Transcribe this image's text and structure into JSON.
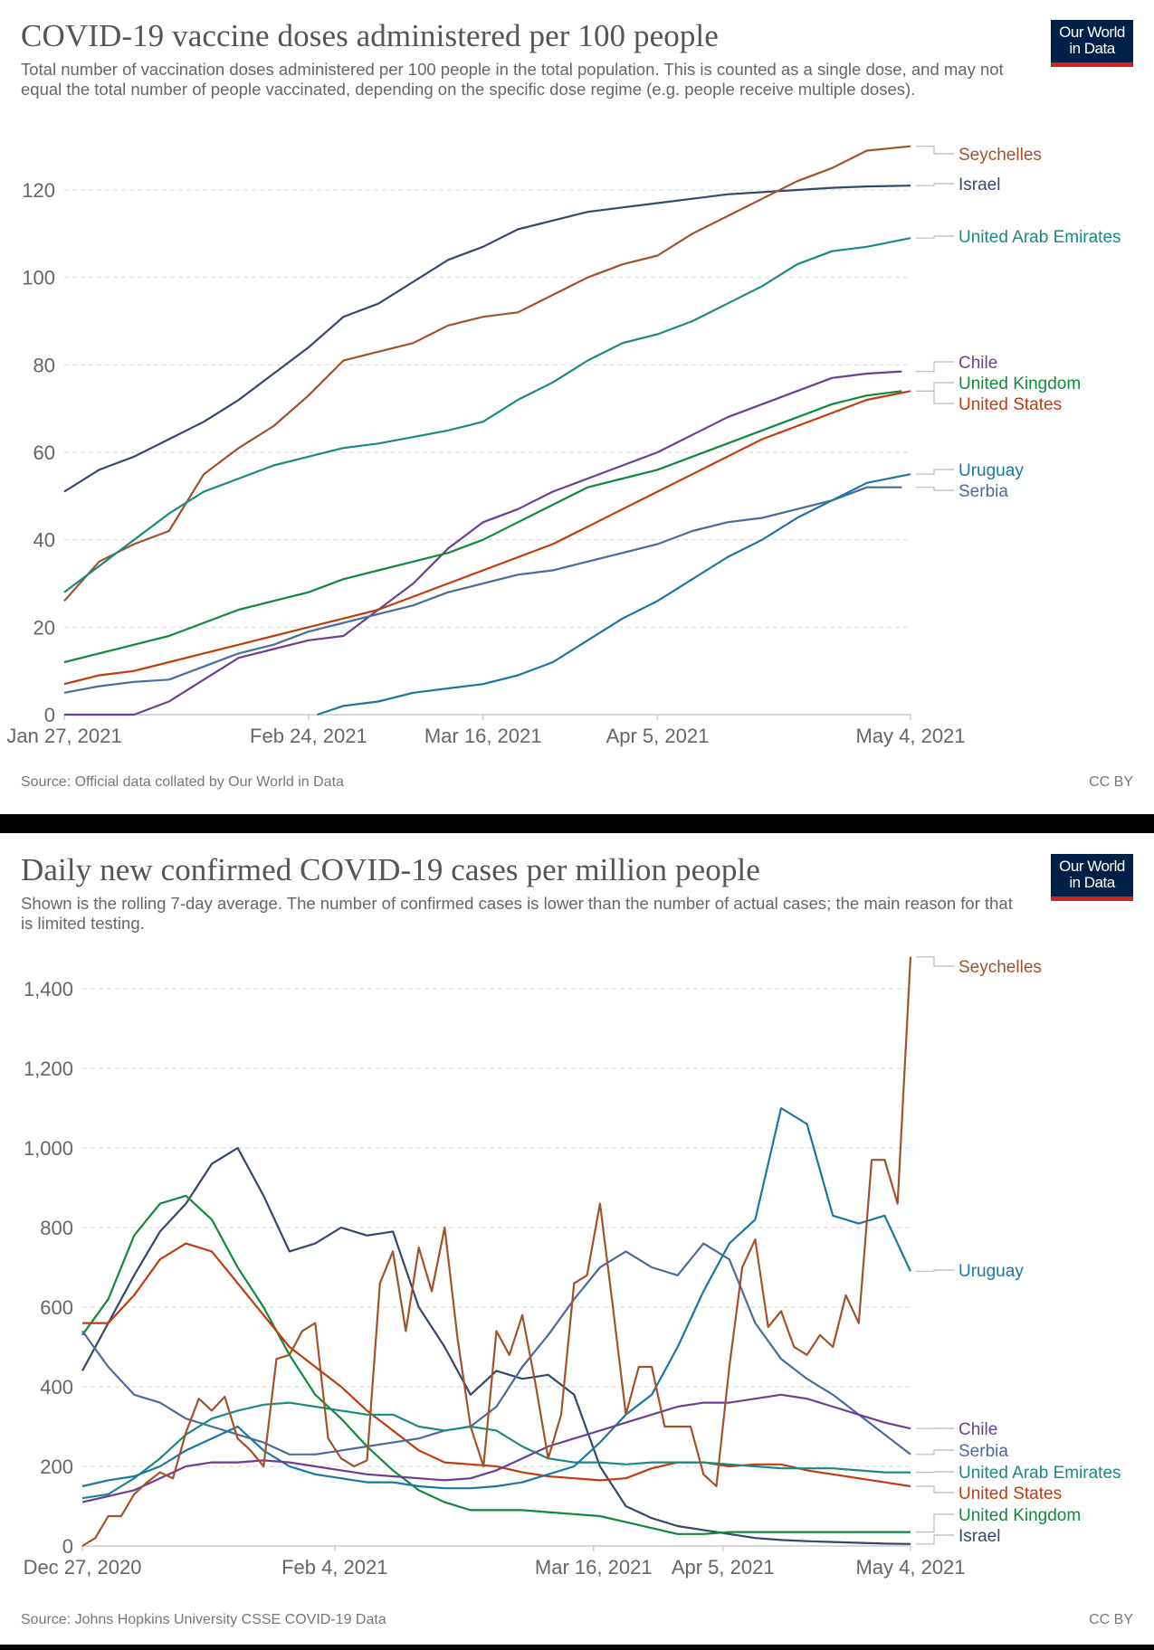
{
  "charts": [
    {
      "title": "COVID-19 vaccine doses administered per 100 people",
      "subtitle": "Total number of vaccination doses administered per 100 people in the total population. This is counted as a single dose, and may not equal the total number of people vaccinated, depending on the specific dose regime (e.g. people receive multiple doses).",
      "logo": [
        "Our World",
        "in Data"
      ],
      "source": "Source: Official data collated by Our World in Data",
      "license": "CC BY"
    },
    {
      "title": "Daily new confirmed COVID-19 cases per million people",
      "subtitle": "Shown is the rolling 7-day average. The number of confirmed cases is lower than the number of actual cases; the main reason for that is limited testing.",
      "logo": [
        "Our World",
        "in Data"
      ],
      "source": "Source: Johns Hopkins University CSSE COVID-19 Data",
      "license": "CC BY"
    }
  ],
  "colors": {
    "Seychelles": "#a2522a",
    "Israel": "#35486b",
    "United Arab Emirates": "#1a8a80",
    "Chile": "#6d3e91",
    "United Kingdom": "#0f8a3c",
    "United States": "#c03c0f",
    "Uruguay": "#1a77a0",
    "Serbia": "#4c6a9c",
    "grid": "#dddddd",
    "axis": "#cccccc",
    "logo_bg": "#002147",
    "logo_accent": "#ce261e"
  },
  "chart_data": [
    {
      "type": "line",
      "title": "COVID-19 vaccine doses administered per 100 people",
      "xlabel": "",
      "ylabel": "",
      "x_unit": "days since Jan 27, 2021",
      "xlim": [
        0,
        97
      ],
      "ylim": [
        0,
        130
      ],
      "yticks": [
        0,
        20,
        40,
        60,
        80,
        100,
        120
      ],
      "ytick_labels": [
        "0",
        "20",
        "40",
        "60",
        "80",
        "100",
        "120"
      ],
      "xticks": [
        0,
        28,
        48,
        68,
        97
      ],
      "xtick_labels": [
        "Jan 27, 2021",
        "Feb 24, 2021",
        "Mar 16, 2021",
        "Apr 5, 2021",
        "May 4, 2021"
      ],
      "grid": true,
      "legend": "right, end-of-line labels",
      "legend_order": [
        "Seychelles",
        "Israel",
        "United Arab Emirates",
        "Chile",
        "United Kingdom",
        "United States",
        "Uruguay",
        "Serbia"
      ],
      "series": [
        {
          "name": "Israel",
          "x": [
            0,
            4,
            8,
            12,
            16,
            20,
            24,
            28,
            32,
            36,
            40,
            44,
            48,
            52,
            56,
            60,
            64,
            68,
            72,
            76,
            80,
            84,
            88,
            92,
            97
          ],
          "values": [
            51,
            56,
            59,
            63,
            67,
            72,
            78,
            84,
            91,
            94,
            99,
            104,
            107,
            111,
            113,
            115,
            116,
            117,
            118,
            119,
            119.5,
            120,
            120.5,
            120.8,
            121
          ]
        },
        {
          "name": "Seychelles",
          "x": [
            0,
            4,
            8,
            12,
            16,
            20,
            24,
            28,
            32,
            36,
            40,
            44,
            48,
            52,
            56,
            60,
            64,
            68,
            72,
            76,
            80,
            84,
            88,
            92,
            97
          ],
          "values": [
            26,
            35,
            39,
            42,
            55,
            61,
            66,
            73,
            81,
            83,
            85,
            89,
            91,
            92,
            96,
            100,
            103,
            105,
            110,
            114,
            118,
            122,
            125,
            129,
            130
          ]
        },
        {
          "name": "United Arab Emirates",
          "x": [
            0,
            4,
            8,
            12,
            16,
            20,
            24,
            28,
            32,
            36,
            40,
            44,
            48,
            52,
            56,
            60,
            64,
            68,
            72,
            76,
            80,
            84,
            88,
            92,
            97
          ],
          "values": [
            28,
            34,
            40,
            46,
            51,
            54,
            57,
            59,
            61,
            62,
            63.5,
            65,
            67,
            72,
            76,
            81,
            85,
            87,
            90,
            94,
            98,
            103,
            106,
            107,
            109
          ]
        },
        {
          "name": "Chile",
          "x": [
            0,
            4,
            8,
            12,
            16,
            20,
            24,
            28,
            32,
            36,
            40,
            44,
            48,
            52,
            56,
            60,
            64,
            68,
            72,
            76,
            80,
            84,
            88,
            92,
            96
          ],
          "values": [
            0,
            0,
            0,
            3,
            8,
            13,
            15,
            17,
            18,
            24,
            30,
            38,
            44,
            47,
            51,
            54,
            57,
            60,
            64,
            68,
            71,
            74,
            77,
            78,
            78.5
          ]
        },
        {
          "name": "United Kingdom",
          "x": [
            0,
            4,
            8,
            12,
            16,
            20,
            24,
            28,
            32,
            36,
            40,
            44,
            48,
            52,
            56,
            60,
            64,
            68,
            72,
            76,
            80,
            84,
            88,
            92,
            96
          ],
          "values": [
            12,
            14,
            16,
            18,
            21,
            24,
            26,
            28,
            31,
            33,
            35,
            37,
            40,
            44,
            48,
            52,
            54,
            56,
            59,
            62,
            65,
            68,
            71,
            73,
            74
          ]
        },
        {
          "name": "United States",
          "x": [
            0,
            4,
            8,
            12,
            16,
            20,
            24,
            28,
            32,
            36,
            40,
            44,
            48,
            52,
            56,
            60,
            64,
            68,
            72,
            76,
            80,
            84,
            88,
            92,
            97
          ],
          "values": [
            7,
            9,
            10,
            12,
            14,
            16,
            18,
            20,
            22,
            24,
            27,
            30,
            33,
            36,
            39,
            43,
            47,
            51,
            55,
            59,
            63,
            66,
            69,
            72,
            74
          ]
        },
        {
          "name": "Serbia",
          "x": [
            0,
            4,
            8,
            12,
            16,
            20,
            24,
            28,
            32,
            36,
            40,
            44,
            48,
            52,
            56,
            60,
            64,
            68,
            72,
            76,
            80,
            84,
            88,
            92,
            96
          ],
          "values": [
            5,
            6.5,
            7.5,
            8,
            11,
            14,
            16,
            19,
            21,
            23,
            25,
            28,
            30,
            32,
            33,
            35,
            37,
            39,
            42,
            44,
            45,
            47,
            49,
            52,
            52
          ]
        },
        {
          "name": "Uruguay",
          "x": [
            29,
            32,
            36,
            40,
            44,
            48,
            52,
            56,
            60,
            64,
            68,
            72,
            76,
            80,
            84,
            88,
            92,
            97
          ],
          "values": [
            0,
            2,
            3,
            5,
            6,
            7,
            9,
            12,
            17,
            22,
            26,
            31,
            36,
            40,
            45,
            49,
            53,
            55
          ]
        }
      ]
    },
    {
      "type": "line",
      "title": "Daily new confirmed COVID-19 cases per million people",
      "xlabel": "",
      "ylabel": "",
      "x_unit": "days since Dec 27, 2020",
      "xlim": [
        0,
        128
      ],
      "ylim": [
        0,
        1480
      ],
      "yticks": [
        0,
        200,
        400,
        600,
        800,
        1000,
        1200,
        1400
      ],
      "ytick_labels": [
        "0",
        "200",
        "400",
        "600",
        "800",
        "1,000",
        "1,200",
        "1,400"
      ],
      "xticks": [
        0,
        39,
        79,
        99,
        128
      ],
      "xtick_labels": [
        "Dec 27, 2020",
        "Feb 4, 2021",
        "Mar 16, 2021",
        "Apr 5, 2021",
        "May 4, 2021"
      ],
      "grid": true,
      "legend": "right, end-of-line labels",
      "legend_order": [
        "Seychelles",
        "Uruguay",
        "Chile",
        "Serbia",
        "United Arab Emirates",
        "United States",
        "United Kingdom",
        "Israel"
      ],
      "series": [
        {
          "name": "Israel",
          "step": 4,
          "values": [
            440,
            560,
            680,
            790,
            860,
            960,
            1000,
            880,
            740,
            760,
            800,
            780,
            790,
            600,
            500,
            380,
            440,
            420,
            430,
            380,
            200,
            100,
            70,
            50,
            40,
            30,
            20,
            15,
            12,
            10,
            8,
            6,
            5
          ]
        },
        {
          "name": "United Kingdom",
          "step": 4,
          "values": [
            530,
            620,
            780,
            860,
            880,
            820,
            700,
            600,
            480,
            380,
            320,
            250,
            190,
            140,
            110,
            90,
            90,
            90,
            85,
            80,
            75,
            60,
            45,
            30,
            30,
            35,
            35,
            35,
            35,
            35,
            35,
            35,
            35
          ]
        },
        {
          "name": "United States",
          "step": 4,
          "values": [
            560,
            560,
            630,
            720,
            760,
            740,
            660,
            580,
            500,
            450,
            400,
            340,
            290,
            240,
            210,
            205,
            200,
            185,
            175,
            170,
            165,
            170,
            195,
            210,
            210,
            200,
            205,
            205,
            190,
            180,
            170,
            160,
            150
          ]
        },
        {
          "name": "Serbia",
          "step": 4,
          "values": [
            540,
            450,
            380,
            360,
            320,
            300,
            280,
            260,
            230,
            230,
            240,
            250,
            260,
            270,
            290,
            300,
            350,
            450,
            530,
            620,
            700,
            740,
            700,
            680,
            760,
            720,
            560,
            470,
            420,
            380,
            330,
            280,
            230
          ]
        },
        {
          "name": "United Arab Emirates",
          "step": 4,
          "values": [
            120,
            130,
            170,
            220,
            280,
            320,
            340,
            355,
            360,
            350,
            340,
            330,
            330,
            300,
            290,
            300,
            290,
            250,
            220,
            210,
            210,
            205,
            210,
            210,
            210,
            205,
            200,
            195,
            195,
            195,
            190,
            185,
            185
          ]
        },
        {
          "name": "Uruguay",
          "step": 4,
          "values": [
            150,
            165,
            175,
            200,
            240,
            270,
            300,
            240,
            200,
            180,
            170,
            160,
            160,
            150,
            145,
            145,
            150,
            160,
            180,
            200,
            260,
            330,
            380,
            500,
            640,
            760,
            820,
            1100,
            1060,
            830,
            810,
            830,
            690
          ]
        },
        {
          "name": "Chile",
          "step": 4,
          "values": [
            110,
            125,
            140,
            170,
            200,
            210,
            210,
            215,
            210,
            200,
            190,
            180,
            175,
            170,
            165,
            170,
            190,
            220,
            250,
            270,
            290,
            310,
            330,
            350,
            360,
            360,
            370,
            380,
            370,
            350,
            330,
            310,
            295
          ]
        },
        {
          "name": "Seychelles",
          "step": 2,
          "values": [
            0,
            20,
            75,
            75,
            130,
            160,
            185,
            170,
            285,
            370,
            340,
            375,
            270,
            240,
            200,
            470,
            480,
            540,
            560,
            270,
            220,
            200,
            215,
            660,
            740,
            540,
            750,
            640,
            800,
            520,
            300,
            200,
            540,
            480,
            580,
            410,
            220,
            330,
            660,
            680,
            860,
            600,
            330,
            450,
            450,
            300,
            300,
            300,
            180,
            150,
            450,
            700,
            770,
            550,
            590,
            500,
            480,
            530,
            500,
            630,
            560,
            970,
            970,
            860,
            1480
          ]
        }
      ]
    }
  ]
}
